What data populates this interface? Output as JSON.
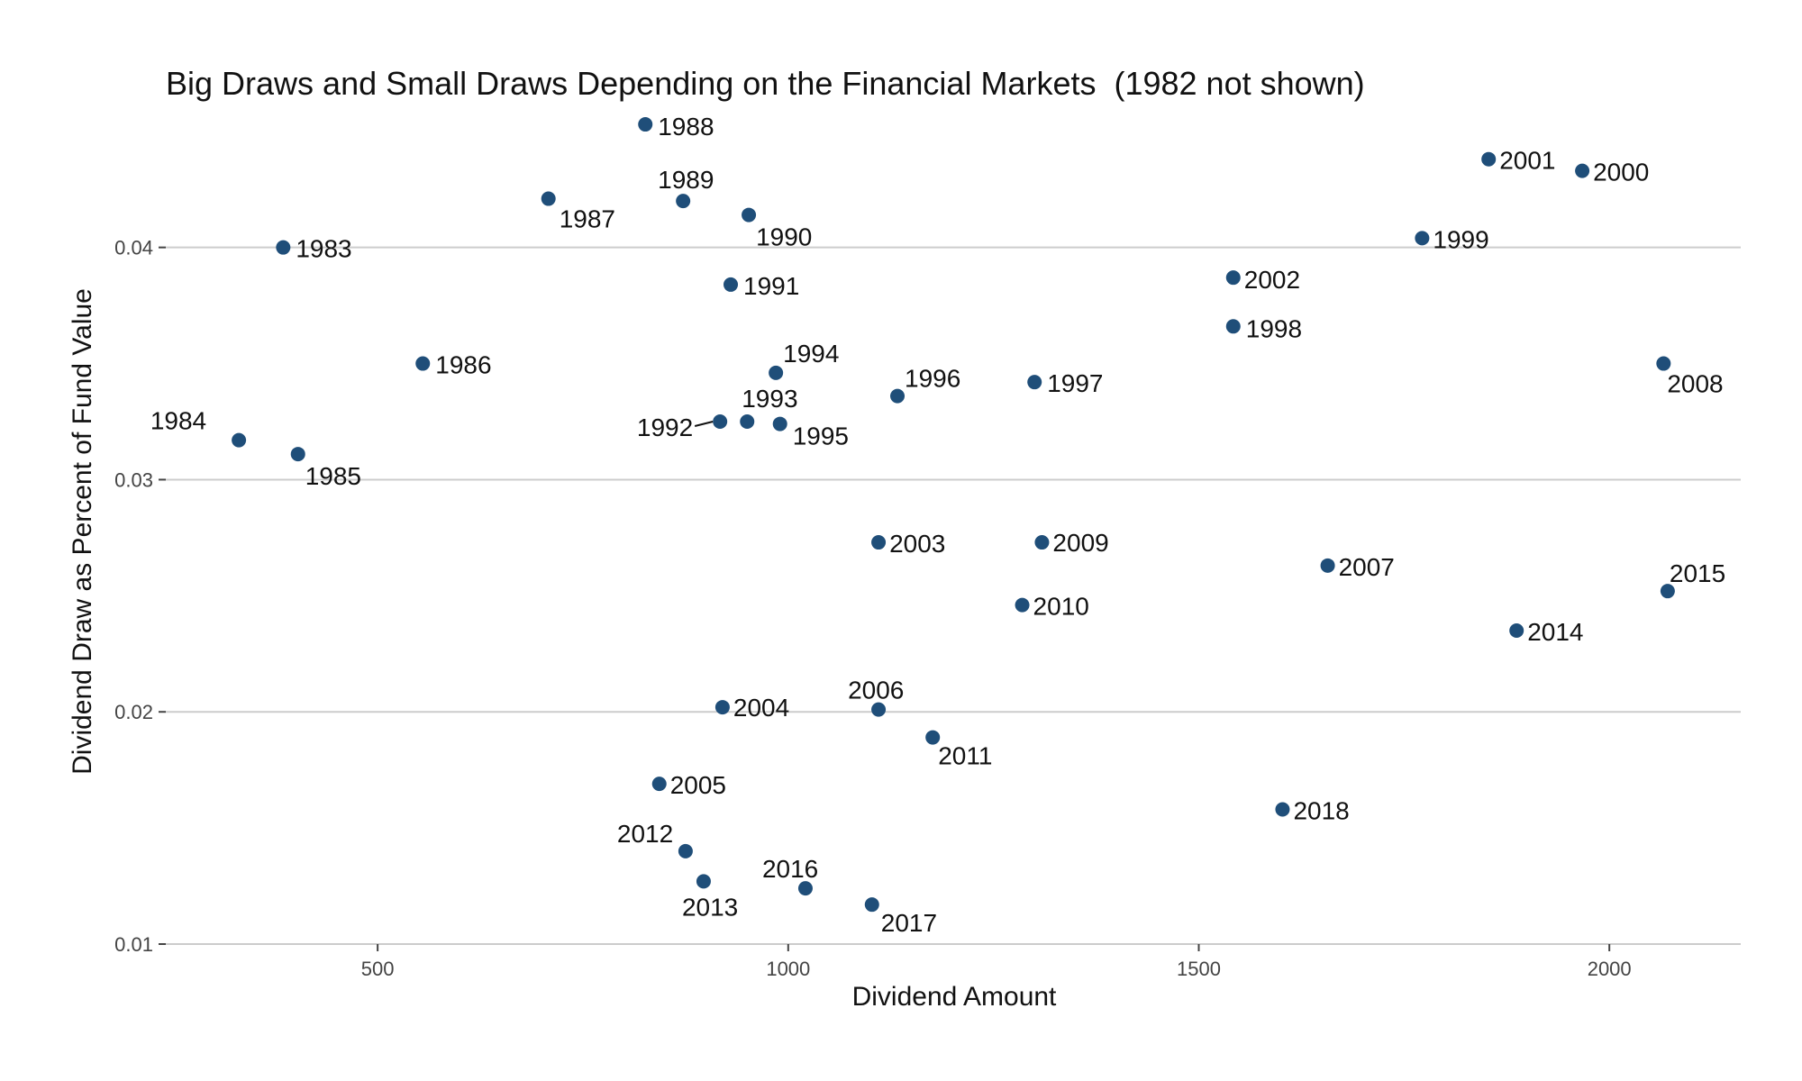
{
  "chart_data": {
    "type": "scatter",
    "title": "Big Draws and Small Draws Depending on the Financial Markets  (1982 not shown)",
    "xlabel": "Dividend Amount",
    "ylabel": "Dividend Draw as Percent of Fund Value",
    "xlim": [
      242,
      2160
    ],
    "ylim": [
      0.01,
      0.046
    ],
    "xticks": [
      500,
      1000,
      1500,
      2000
    ],
    "xtick_labels": [
      "500",
      "1000",
      "1500",
      "2000"
    ],
    "yticks": [
      0.01,
      0.02,
      0.03,
      0.04
    ],
    "ytick_labels": [
      "0.01",
      "0.02",
      "0.03",
      "0.04"
    ],
    "grid": "horizontal major",
    "legend": "none",
    "point_color": "#1f4e79",
    "points": [
      {
        "label": "1983",
        "x": 385,
        "y": 0.04
      },
      {
        "label": "1984",
        "x": 331,
        "y": 0.0317
      },
      {
        "label": "1985",
        "x": 403,
        "y": 0.0311
      },
      {
        "label": "1986",
        "x": 555,
        "y": 0.035
      },
      {
        "label": "1987",
        "x": 708,
        "y": 0.0421
      },
      {
        "label": "1988",
        "x": 826,
        "y": 0.0453
      },
      {
        "label": "1989",
        "x": 872,
        "y": 0.042
      },
      {
        "label": "1990",
        "x": 952,
        "y": 0.0414
      },
      {
        "label": "1991",
        "x": 930,
        "y": 0.0384
      },
      {
        "label": "1992",
        "x": 917,
        "y": 0.0325
      },
      {
        "label": "1993",
        "x": 950,
        "y": 0.0325
      },
      {
        "label": "1994",
        "x": 985,
        "y": 0.0346
      },
      {
        "label": "1995",
        "x": 990,
        "y": 0.0324
      },
      {
        "label": "1996",
        "x": 1133,
        "y": 0.0336
      },
      {
        "label": "1997",
        "x": 1300,
        "y": 0.0342
      },
      {
        "label": "1998",
        "x": 1542,
        "y": 0.0366
      },
      {
        "label": "1999",
        "x": 1772,
        "y": 0.0404
      },
      {
        "label": "2000",
        "x": 1967,
        "y": 0.0433
      },
      {
        "label": "2001",
        "x": 1853,
        "y": 0.0438
      },
      {
        "label": "2002",
        "x": 1542,
        "y": 0.0387
      },
      {
        "label": "2003",
        "x": 1110,
        "y": 0.0273
      },
      {
        "label": "2004",
        "x": 920,
        "y": 0.0202
      },
      {
        "label": "2005",
        "x": 843,
        "y": 0.0169
      },
      {
        "label": "2006",
        "x": 1110,
        "y": 0.0201
      },
      {
        "label": "2007",
        "x": 1657,
        "y": 0.0263
      },
      {
        "label": "2008",
        "x": 2066,
        "y": 0.035
      },
      {
        "label": "2009",
        "x": 1309,
        "y": 0.0273
      },
      {
        "label": "2010",
        "x": 1285,
        "y": 0.0246
      },
      {
        "label": "2011",
        "x": 1176,
        "y": 0.0189
      },
      {
        "label": "2012",
        "x": 875,
        "y": 0.014
      },
      {
        "label": "2013",
        "x": 897,
        "y": 0.0127
      },
      {
        "label": "2014",
        "x": 1887,
        "y": 0.0235
      },
      {
        "label": "2015",
        "x": 2071,
        "y": 0.0252
      },
      {
        "label": "2016",
        "x": 1021,
        "y": 0.0124
      },
      {
        "label": "2017",
        "x": 1102,
        "y": 0.0117
      },
      {
        "label": "2018",
        "x": 1602,
        "y": 0.0158
      }
    ]
  }
}
